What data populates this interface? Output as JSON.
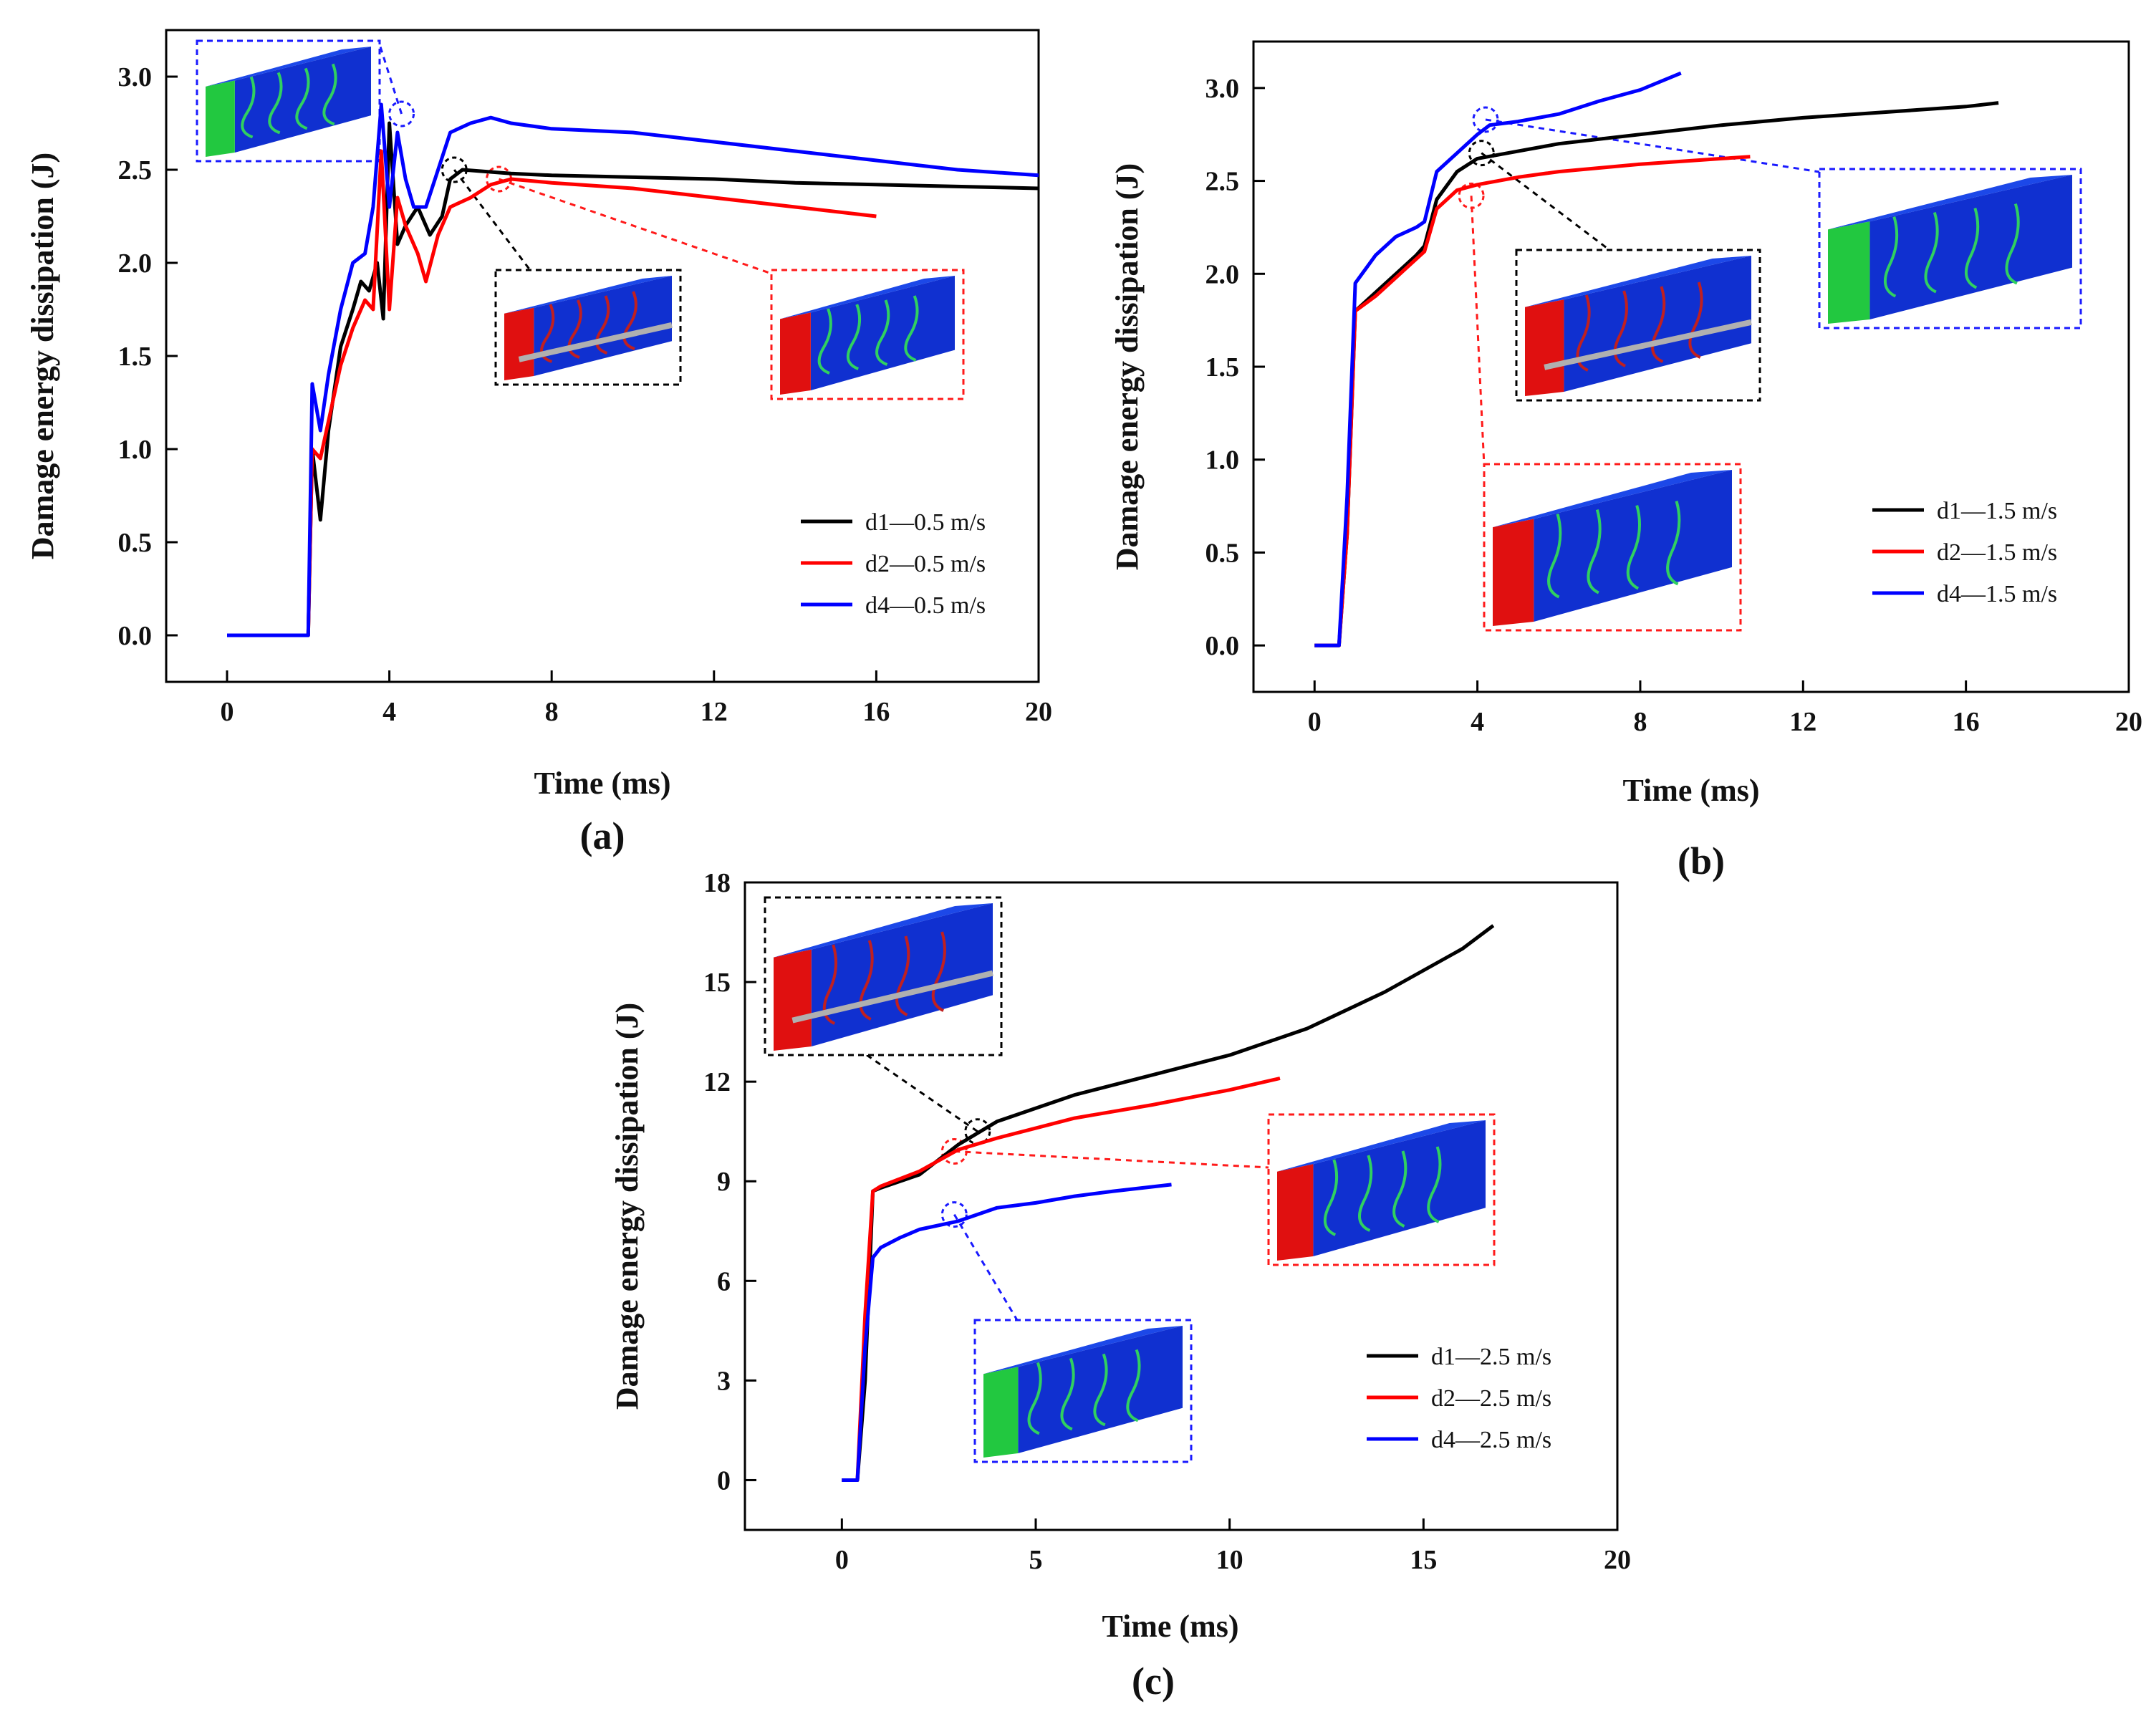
{
  "chart_data": [
    {
      "panel": "(a)",
      "type": "line",
      "xlabel": "Time (ms)",
      "ylabel": "Damage energy dissipation (J)",
      "xlim": [
        -1.5,
        20
      ],
      "ylim": [
        -0.25,
        3.25
      ],
      "xticks": [
        0,
        4,
        8,
        12,
        16,
        20
      ],
      "yticks": [
        "0.0",
        "0.5",
        "1.0",
        "1.5",
        "2.0",
        "2.5",
        "3.0"
      ],
      "legend_position": "bottom-right",
      "series": [
        {
          "name": "d1—0.5 m/s",
          "color": "#000000",
          "points": [
            [
              0,
              0
            ],
            [
              2,
              0
            ],
            [
              2.1,
              1.0
            ],
            [
              2.3,
              0.62
            ],
            [
              2.5,
              1.1
            ],
            [
              2.8,
              1.55
            ],
            [
              3.1,
              1.75
            ],
            [
              3.3,
              1.9
            ],
            [
              3.5,
              1.85
            ],
            [
              3.7,
              2.0
            ],
            [
              3.85,
              1.7
            ],
            [
              4.0,
              2.75
            ],
            [
              4.2,
              2.1
            ],
            [
              4.4,
              2.2
            ],
            [
              4.7,
              2.3
            ],
            [
              5.0,
              2.15
            ],
            [
              5.3,
              2.25
            ],
            [
              5.5,
              2.45
            ],
            [
              5.8,
              2.5
            ],
            [
              7,
              2.48
            ],
            [
              8,
              2.47
            ],
            [
              10,
              2.46
            ],
            [
              12,
              2.45
            ],
            [
              14,
              2.43
            ],
            [
              16,
              2.42
            ],
            [
              18,
              2.41
            ],
            [
              20,
              2.4
            ]
          ]
        },
        {
          "name": "d2—0.5 m/s",
          "color": "#ff0000",
          "points": [
            [
              0,
              0
            ],
            [
              2,
              0
            ],
            [
              2.1,
              1.0
            ],
            [
              2.3,
              0.95
            ],
            [
              2.5,
              1.15
            ],
            [
              2.8,
              1.45
            ],
            [
              3.1,
              1.65
            ],
            [
              3.4,
              1.8
            ],
            [
              3.6,
              1.75
            ],
            [
              3.8,
              2.6
            ],
            [
              4.0,
              1.75
            ],
            [
              4.2,
              2.35
            ],
            [
              4.4,
              2.2
            ],
            [
              4.7,
              2.05
            ],
            [
              4.9,
              1.9
            ],
            [
              5.2,
              2.15
            ],
            [
              5.5,
              2.3
            ],
            [
              6.0,
              2.35
            ],
            [
              6.5,
              2.42
            ],
            [
              7,
              2.45
            ],
            [
              8,
              2.43
            ],
            [
              10,
              2.4
            ],
            [
              12,
              2.35
            ],
            [
              14,
              2.3
            ],
            [
              16,
              2.25
            ]
          ]
        },
        {
          "name": "d4—0.5 m/s",
          "color": "#0000ff",
          "points": [
            [
              0,
              0
            ],
            [
              2,
              0
            ],
            [
              2.1,
              1.35
            ],
            [
              2.3,
              1.1
            ],
            [
              2.5,
              1.4
            ],
            [
              2.8,
              1.75
            ],
            [
              3.1,
              2.0
            ],
            [
              3.4,
              2.05
            ],
            [
              3.6,
              2.3
            ],
            [
              3.8,
              2.85
            ],
            [
              4.0,
              2.3
            ],
            [
              4.2,
              2.7
            ],
            [
              4.4,
              2.45
            ],
            [
              4.6,
              2.3
            ],
            [
              4.9,
              2.3
            ],
            [
              5.2,
              2.5
            ],
            [
              5.5,
              2.7
            ],
            [
              6,
              2.75
            ],
            [
              6.5,
              2.78
            ],
            [
              7,
              2.75
            ],
            [
              8,
              2.72
            ],
            [
              10,
              2.7
            ],
            [
              12,
              2.65
            ],
            [
              14,
              2.6
            ],
            [
              16,
              2.55
            ],
            [
              18,
              2.5
            ],
            [
              20,
              2.47
            ]
          ]
        }
      ]
    },
    {
      "panel": "(b)",
      "type": "line",
      "xlabel": "Time (ms)",
      "ylabel": "Damage energy dissipation (J)",
      "xlim": [
        -1.5,
        20
      ],
      "ylim": [
        -0.25,
        3.25
      ],
      "xticks": [
        0,
        4,
        8,
        12,
        16,
        20
      ],
      "yticks": [
        "0.0",
        "0.5",
        "1.0",
        "1.5",
        "2.0",
        "2.5",
        "3.0"
      ],
      "legend_position": "bottom-right",
      "series": [
        {
          "name": "d1—1.5 m/s",
          "color": "#000000",
          "points": [
            [
              0,
              0
            ],
            [
              0.6,
              0
            ],
            [
              0.8,
              0.6
            ],
            [
              1.0,
              1.8
            ],
            [
              1.5,
              1.9
            ],
            [
              2.0,
              2.0
            ],
            [
              2.5,
              2.1
            ],
            [
              2.7,
              2.15
            ],
            [
              3.0,
              2.4
            ],
            [
              3.5,
              2.55
            ],
            [
              4.0,
              2.62
            ],
            [
              5,
              2.66
            ],
            [
              6,
              2.7
            ],
            [
              8,
              2.75
            ],
            [
              10,
              2.8
            ],
            [
              12,
              2.84
            ],
            [
              14,
              2.87
            ],
            [
              16,
              2.9
            ],
            [
              16.8,
              2.92
            ]
          ]
        },
        {
          "name": "d2—1.5 m/s",
          "color": "#ff0000",
          "points": [
            [
              0,
              0
            ],
            [
              0.6,
              0
            ],
            [
              0.8,
              0.6
            ],
            [
              1.0,
              1.8
            ],
            [
              1.5,
              1.88
            ],
            [
              2.0,
              1.98
            ],
            [
              2.5,
              2.08
            ],
            [
              2.7,
              2.12
            ],
            [
              3.0,
              2.35
            ],
            [
              3.5,
              2.45
            ],
            [
              4.0,
              2.48
            ],
            [
              5,
              2.52
            ],
            [
              6,
              2.55
            ],
            [
              8,
              2.59
            ],
            [
              10,
              2.62
            ],
            [
              10.7,
              2.63
            ]
          ]
        },
        {
          "name": "d4—1.5 m/s",
          "color": "#0000ff",
          "points": [
            [
              0,
              0
            ],
            [
              0.6,
              0
            ],
            [
              0.8,
              0.8
            ],
            [
              1.0,
              1.95
            ],
            [
              1.5,
              2.1
            ],
            [
              2.0,
              2.2
            ],
            [
              2.5,
              2.25
            ],
            [
              2.7,
              2.28
            ],
            [
              3.0,
              2.55
            ],
            [
              3.5,
              2.65
            ],
            [
              4.0,
              2.75
            ],
            [
              4.3,
              2.8
            ],
            [
              5,
              2.82
            ],
            [
              6,
              2.86
            ],
            [
              7,
              2.93
            ],
            [
              8,
              2.99
            ],
            [
              9,
              3.08
            ]
          ]
        }
      ]
    },
    {
      "panel": "(c)",
      "type": "line",
      "xlabel": "Time (ms)",
      "ylabel": "Damage energy dissipation (J)",
      "xlim": [
        -2.5,
        20
      ],
      "ylim": [
        -1.5,
        18
      ],
      "xticks": [
        0,
        5,
        10,
        15,
        20
      ],
      "yticks": [
        "0",
        "3",
        "6",
        "9",
        "12",
        "15",
        "18"
      ],
      "legend_position": "bottom-right",
      "series": [
        {
          "name": "d1—2.5 m/s",
          "color": "#000000",
          "points": [
            [
              0,
              0
            ],
            [
              0.4,
              0
            ],
            [
              0.6,
              3.0
            ],
            [
              0.8,
              8.7
            ],
            [
              1.0,
              8.8
            ],
            [
              2,
              9.2
            ],
            [
              3,
              10.1
            ],
            [
              4,
              10.8
            ],
            [
              5,
              11.2
            ],
            [
              6,
              11.6
            ],
            [
              8,
              12.2
            ],
            [
              10,
              12.8
            ],
            [
              12,
              13.6
            ],
            [
              14,
              14.7
            ],
            [
              16,
              16.0
            ],
            [
              16.8,
              16.7
            ]
          ]
        },
        {
          "name": "d2—2.5 m/s",
          "color": "#ff0000",
          "points": [
            [
              0,
              0
            ],
            [
              0.4,
              0
            ],
            [
              0.6,
              5.0
            ],
            [
              0.8,
              8.7
            ],
            [
              1.0,
              8.85
            ],
            [
              2,
              9.3
            ],
            [
              3,
              9.95
            ],
            [
              4,
              10.3
            ],
            [
              5,
              10.6
            ],
            [
              6,
              10.9
            ],
            [
              8,
              11.3
            ],
            [
              10,
              11.75
            ],
            [
              11.3,
              12.1
            ]
          ]
        },
        {
          "name": "d4—2.5 m/s",
          "color": "#0000ff",
          "points": [
            [
              0,
              0
            ],
            [
              0.4,
              0
            ],
            [
              0.6,
              4.0
            ],
            [
              0.8,
              6.7
            ],
            [
              1.0,
              7.0
            ],
            [
              1.5,
              7.3
            ],
            [
              2,
              7.55
            ],
            [
              3,
              7.8
            ],
            [
              4,
              8.2
            ],
            [
              5,
              8.35
            ],
            [
              6,
              8.55
            ],
            [
              7,
              8.7
            ],
            [
              8.5,
              8.9
            ]
          ]
        }
      ]
    }
  ]
}
